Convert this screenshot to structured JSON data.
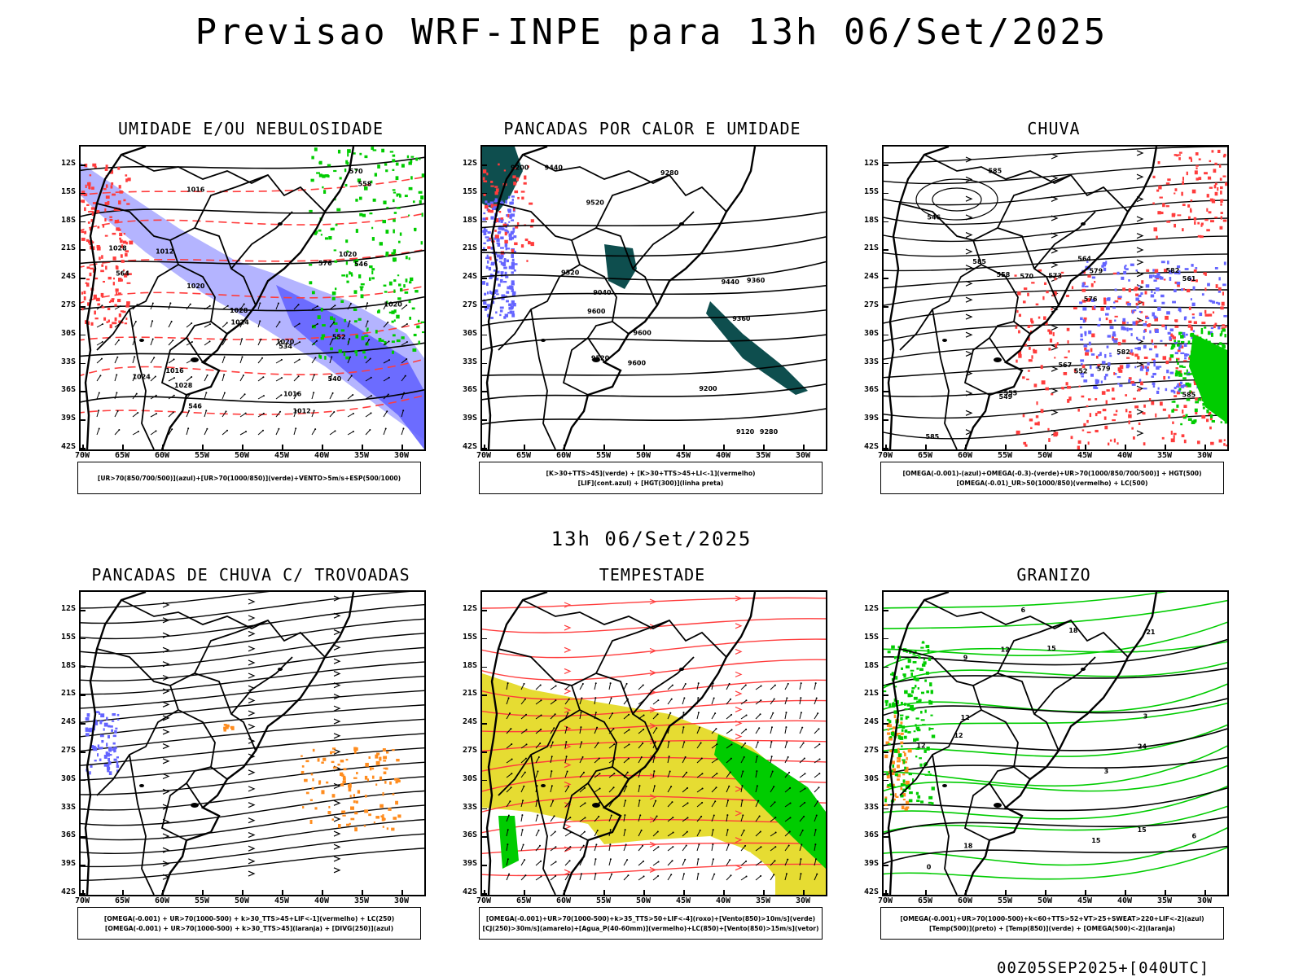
{
  "title": "Previsao WRF-INPE  para 13h 06/Set/2025",
  "mid_date": "13h 06/Set/2025",
  "stamp": "00Z05SEP2025+[040UTC]",
  "lat_labels": [
    "12S",
    "15S",
    "18S",
    "21S",
    "24S",
    "27S",
    "30S",
    "33S",
    "36S",
    "39S",
    "42S"
  ],
  "lon_labels": [
    "70W",
    "65W",
    "60W",
    "55W",
    "50W",
    "45W",
    "40W",
    "35W",
    "30W"
  ],
  "colors": {
    "blue": "#6464ff",
    "lightblue": "#b4b4ff",
    "green": "#00cc00",
    "red": "#ff3c3c",
    "teal": "#0e4e4e",
    "yellow": "#e6dc32",
    "orange": "#ff8c1e"
  },
  "panels": [
    {
      "title": "UMIDADE E/OU NEBULOSIDADE",
      "legend": [
        "[UR>70(850/700/500)](azul)+[UR>70(1000/850)](verde)+VENTO>5m/s+ESP(500/1000)"
      ],
      "contour_labels": [
        "1012",
        "1016",
        "1016",
        "1012",
        "1020",
        "1016",
        "1020",
        "1020",
        "1024",
        "1028",
        "1024",
        "1028",
        "1028",
        "1020",
        "576",
        "570",
        "564",
        "558",
        "552",
        "546",
        "540",
        "534",
        "546"
      ]
    },
    {
      "title": "PANCADAS POR CALOR E UMIDADE",
      "legend": [
        "[K>30+TTS>45](verde) + [K>30+TTS>45+LI<-1](vermelho)",
        "[LIF](cont.azul) + [HGT(300)](linha preta)"
      ],
      "contour_labels": [
        "9600",
        "9520",
        "9440",
        "9360",
        "9280",
        "9520",
        "9600",
        "9600",
        "9520",
        "9440",
        "9360",
        "9280",
        "9200",
        "9120",
        "9040",
        "9200"
      ]
    },
    {
      "title": "CHUVA",
      "legend": [
        "[OMEGA(-0.001)-(azul)+OMEGA(-0.3)-(verde)+UR>70(1000/850/700/500)] + HGT(500)",
        "[OMEGA(-0.01)_UR>50(1000/850)(vermelho) + LC(500)"
      ],
      "contour_labels": [
        "585",
        "585",
        "585",
        "585",
        "582",
        "579",
        "576",
        "573",
        "570",
        "567",
        "564",
        "561",
        "558",
        "555",
        "552",
        "549",
        "546",
        "579",
        "582"
      ]
    },
    {
      "title": "PANCADAS DE CHUVA C/ TROVOADAS",
      "legend": [
        "[OMEGA(-0.001) + UR>70(1000-500) + k>30_TTS>45+LIF<-1](vermelho) + LC(250)",
        "[OMEGA(-0.001) + UR>70(1000-500) + k>30_TTS>45](laranja) + [DIVG(250)](azul)"
      ],
      "contour_labels": []
    },
    {
      "title": "TEMPESTADE",
      "legend": [
        "[OMEGA(-0.001)+UR>70(1000-500)+k>35_TTS>50+LIF<-4](roxo)+[Vento(850)>10m/s](verde)",
        "[CJ(250)>30m/s](amarelo)+[Agua_P(40-60mm)](vermelho)+LC(850)+[Vento(850)>15m/s](vetor)"
      ],
      "contour_labels": []
    },
    {
      "title": "GRANIZO",
      "legend": [
        "[OMEGA(-0.001)+UR>70(1000-500)+k<60+TTS>52+VT>25+SWEAT>220+LIF<-2](azul)",
        "[Temp(500)](preto) + [Temp(850)](verde) + [OMEGA(500)<-2](laranja)"
      ],
      "contour_labels": [
        "12",
        "18",
        "15",
        "12",
        "9",
        "6",
        "3",
        "0",
        "3",
        "6",
        "12",
        "15",
        "18",
        "21",
        "24",
        "15",
        "12"
      ]
    }
  ]
}
